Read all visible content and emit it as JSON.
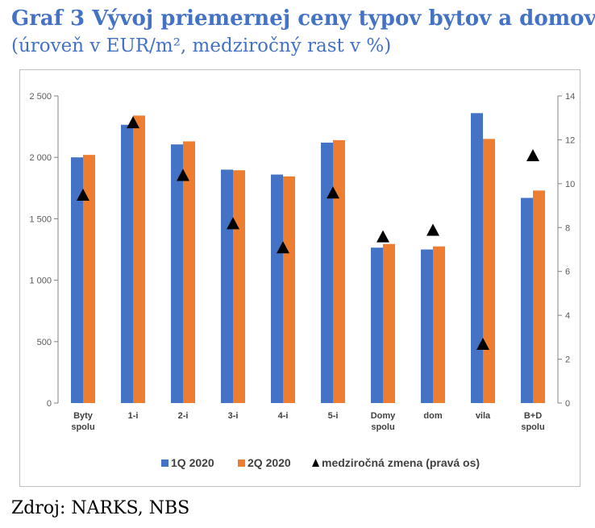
{
  "title": "Graf 3 Vývoj priemernej ceny typov bytov a domov",
  "subtitle": "(úroveň v EUR/m², medziročný rast v %)",
  "source": "Zdroj: NARKS, NBS",
  "chart_data": {
    "type": "bar",
    "categories": [
      [
        "Byty",
        "spolu"
      ],
      [
        "1-i"
      ],
      [
        "2-i"
      ],
      [
        "3-i"
      ],
      [
        "4-i"
      ],
      [
        "5-i"
      ],
      [
        "Domy",
        "spolu"
      ],
      [
        "dom"
      ],
      [
        "vila"
      ],
      [
        "B+D",
        "spolu"
      ]
    ],
    "series": [
      {
        "name": "1Q 2020",
        "type": "bar",
        "axis": "left",
        "color": "#4472C4",
        "values": [
          2000,
          2265,
          2105,
          1900,
          1860,
          2120,
          1265,
          1250,
          2360,
          1670
        ]
      },
      {
        "name": "2Q 2020",
        "type": "bar",
        "axis": "left",
        "color": "#ED7D31",
        "values": [
          2020,
          2340,
          2130,
          1895,
          1845,
          2140,
          1295,
          1275,
          2150,
          1730
        ]
      },
      {
        "name": "medziročná zmena (pravá os)",
        "type": "scatter",
        "marker": "triangle",
        "axis": "right",
        "color": "#000000",
        "values": [
          9.5,
          12.8,
          10.4,
          8.2,
          7.1,
          9.6,
          7.6,
          7.9,
          2.7,
          11.3
        ]
      }
    ],
    "y_left": {
      "min": 0,
      "max": 2500,
      "ticks": [
        0,
        500,
        1000,
        1500,
        2000,
        2500
      ],
      "tick_labels": [
        "0",
        "500",
        "1 000",
        "1 500",
        "2 000",
        "2 500"
      ]
    },
    "y_right": {
      "min": 0,
      "max": 14,
      "ticks": [
        0,
        2,
        4,
        6,
        8,
        10,
        12,
        14
      ],
      "tick_labels": [
        "0",
        "2",
        "4",
        "6",
        "8",
        "10",
        "12",
        "14"
      ]
    },
    "grid": false,
    "legend_position": "bottom"
  }
}
